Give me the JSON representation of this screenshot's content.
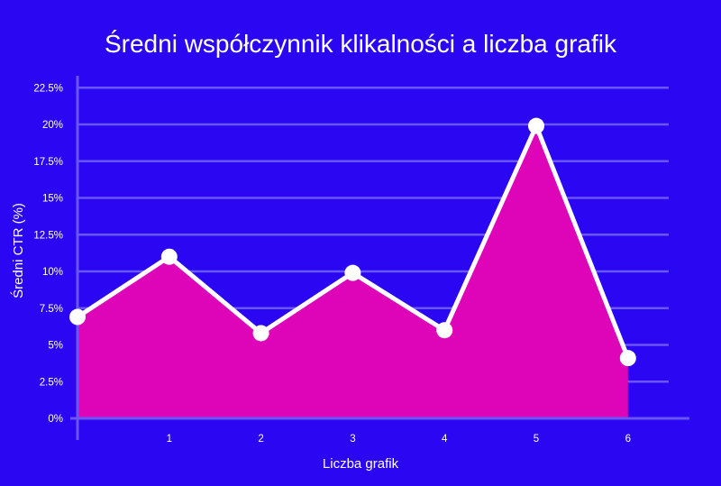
{
  "chart_data": {
    "type": "area",
    "title": "Średni współczynnik klikalności a liczba grafik",
    "xlabel": "Liczba grafik",
    "ylabel": "Średni CTR (%)",
    "x": [
      0,
      1,
      2,
      3,
      4,
      5,
      6
    ],
    "x_tick_labels": [
      "1",
      "2",
      "3",
      "4",
      "5",
      "6"
    ],
    "y_tick_labels": [
      "0%",
      "2.5%",
      "5%",
      "7.5%",
      "10%",
      "12.5%",
      "15%",
      "17.5%",
      "20%",
      "22.5%"
    ],
    "series": [
      {
        "values": [
          6.9,
          11.0,
          5.8,
          9.9,
          6.0,
          19.9,
          4.1
        ]
      }
    ],
    "ylim": [
      0,
      22.5
    ],
    "grid": true,
    "colors": {
      "background": "#2a06f2",
      "area_fill": "#dd05b7",
      "line": "#ffffff",
      "grid": "#6a55f7",
      "axis": "#6a55f7",
      "text": "#ffffff"
    }
  }
}
